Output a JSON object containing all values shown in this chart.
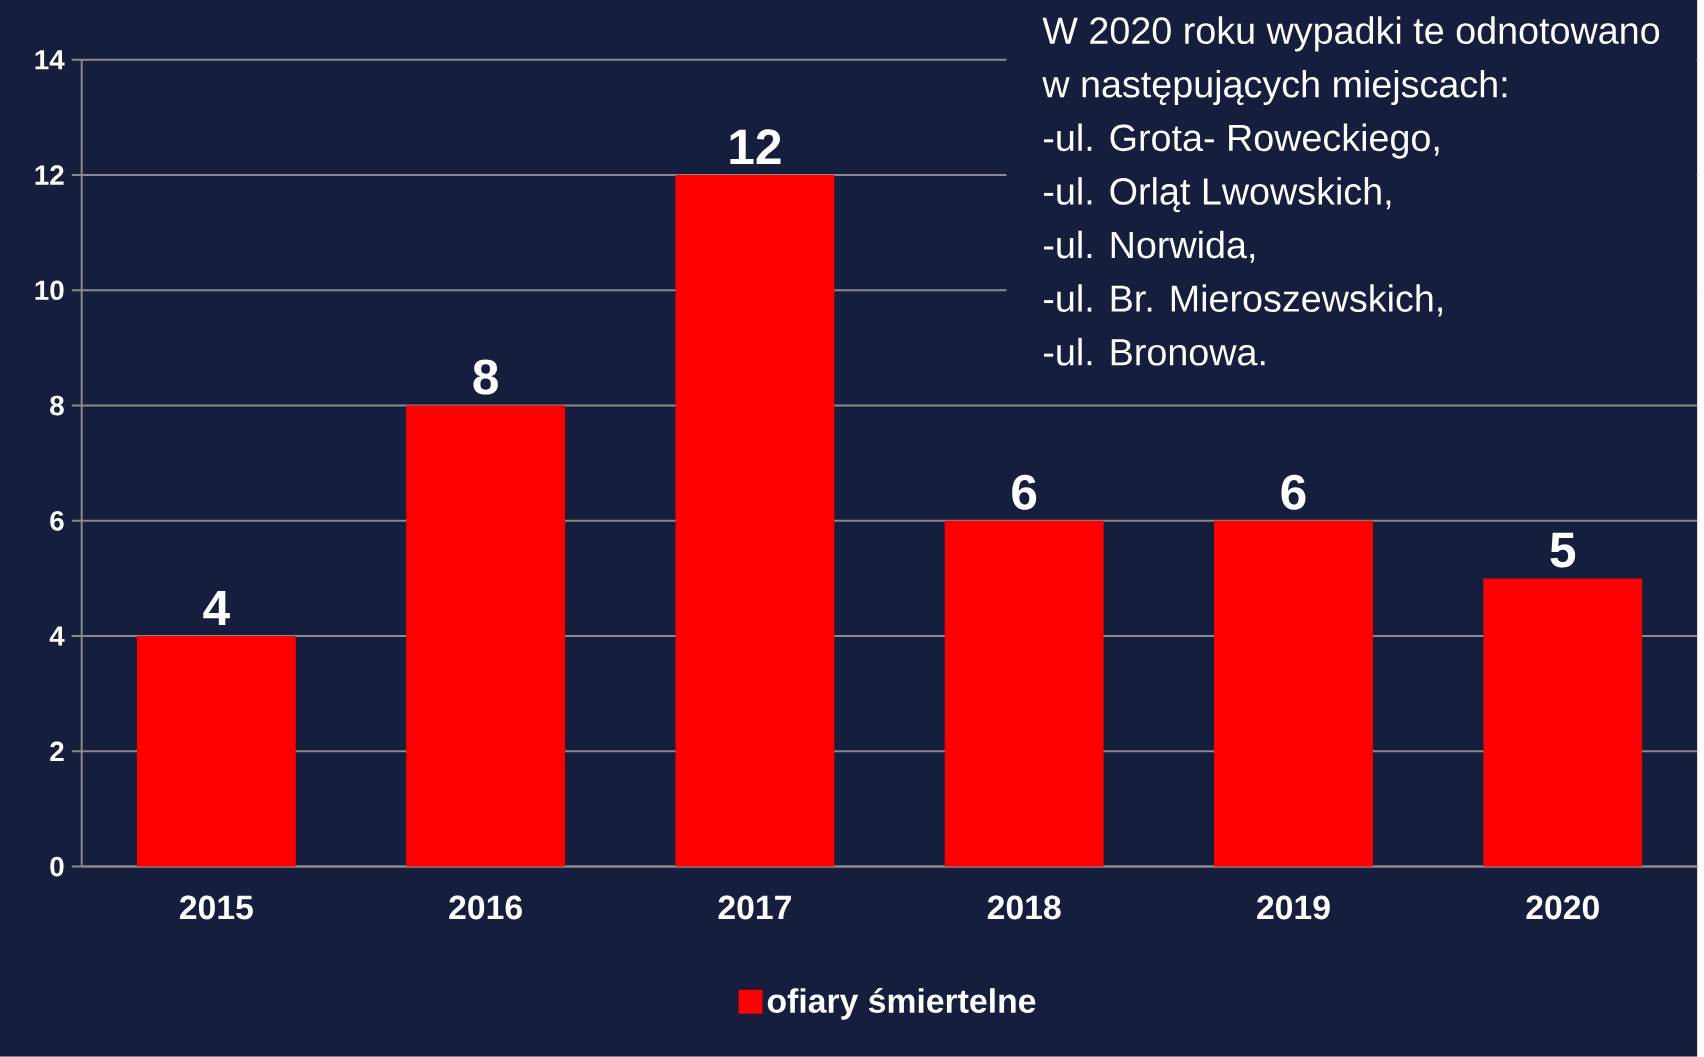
{
  "chart_data": {
    "type": "bar",
    "categories": [
      "2015",
      "2016",
      "2017",
      "2018",
      "2019",
      "2020"
    ],
    "series": [
      {
        "name": "ofiary śmiertelne",
        "color": "#ff0000",
        "values": [
          4,
          8,
          12,
          6,
          6,
          5
        ]
      }
    ],
    "ylim": [
      0,
      14
    ],
    "yticks": [
      0,
      2,
      4,
      6,
      8,
      10,
      12,
      14
    ],
    "grid": "y",
    "legend": "bottom",
    "data_labels": true,
    "annotations": [
      "W 2020 roku wypadki te odnotowano",
      "w następujących miejscach:",
      "-ul. Grota- Roweckiego,",
      "-ul. Orląt Lwowskich,",
      "-ul. Norwida,",
      "-ul. Br. Mieroszewskich,",
      "-ul. Bronowa."
    ]
  }
}
